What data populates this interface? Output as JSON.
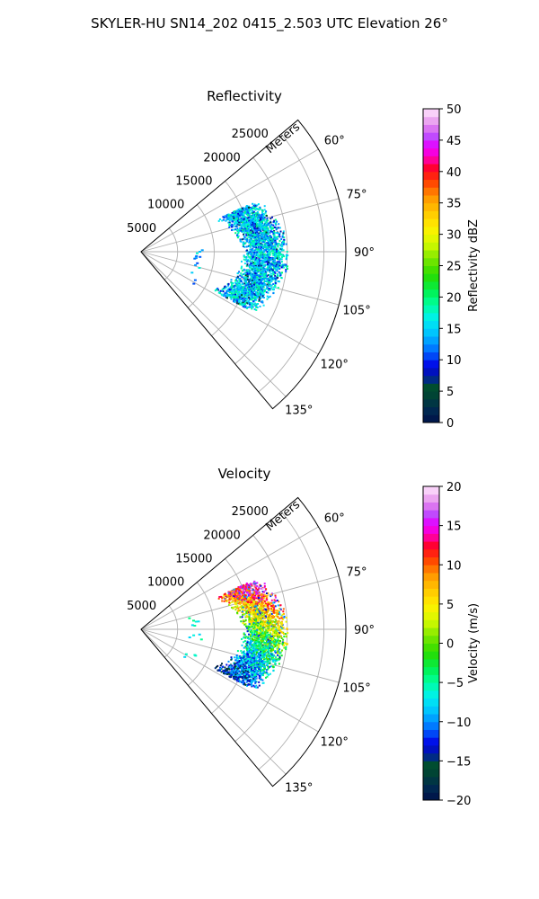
{
  "figure": {
    "title": "SKYLER-HU  SN14_202  0415_2.503 UTC Elevation 26°"
  },
  "chart_data": [
    {
      "type": "polar-sector-scatter",
      "title": "Reflectivity",
      "range_label": "Meters",
      "range_ticks": [
        5000,
        10000,
        15000,
        20000,
        25000
      ],
      "range_tick_labels": [
        "5000",
        "10000",
        "15000",
        "20000",
        "25000"
      ],
      "range_max": 28000,
      "azimuth_range": [
        50,
        140
      ],
      "azimuth_ticks": [
        60,
        75,
        90,
        105,
        120,
        135
      ],
      "azimuth_tick_labels": [
        "60°",
        "75°",
        "90°",
        "105°",
        "120°",
        "135°"
      ],
      "grid": true,
      "colorbar": {
        "label": "Reflectivity dBZ",
        "min": 0,
        "max": 50,
        "ticks": [
          0,
          5,
          10,
          15,
          20,
          25,
          30,
          35,
          40,
          45,
          50
        ],
        "tick_labels": [
          "0",
          "5",
          "10",
          "15",
          "20",
          "25",
          "30",
          "35",
          "40",
          "45",
          "50"
        ]
      },
      "echo_band": {
        "azimuth": [
          66,
          118
        ],
        "range_m": [
          9000,
          17000
        ],
        "typical_value": [
          10,
          20
        ]
      }
    },
    {
      "type": "polar-sector-scatter",
      "title": "Velocity",
      "range_label": "Meters",
      "range_ticks": [
        5000,
        10000,
        15000,
        20000,
        25000
      ],
      "range_tick_labels": [
        "5000",
        "10000",
        "15000",
        "20000",
        "25000"
      ],
      "range_max": 28000,
      "azimuth_range": [
        50,
        140
      ],
      "azimuth_ticks": [
        60,
        75,
        90,
        105,
        120,
        135
      ],
      "azimuth_tick_labels": [
        "60°",
        "75°",
        "90°",
        "105°",
        "120°",
        "135°"
      ],
      "grid": true,
      "colorbar": {
        "label": "Velocity (m/s)",
        "min": -20,
        "max": 20,
        "ticks": [
          -20,
          -15,
          -10,
          -5,
          0,
          5,
          10,
          15,
          20
        ],
        "tick_labels": [
          "−20",
          "−15",
          "−10",
          "−5",
          "0",
          "5",
          "10",
          "15",
          "20"
        ]
      },
      "echo_band": {
        "azimuth": [
          66,
          118
        ],
        "range_m": [
          9000,
          17000
        ],
        "typical_value": [
          -15,
          15
        ]
      }
    }
  ]
}
